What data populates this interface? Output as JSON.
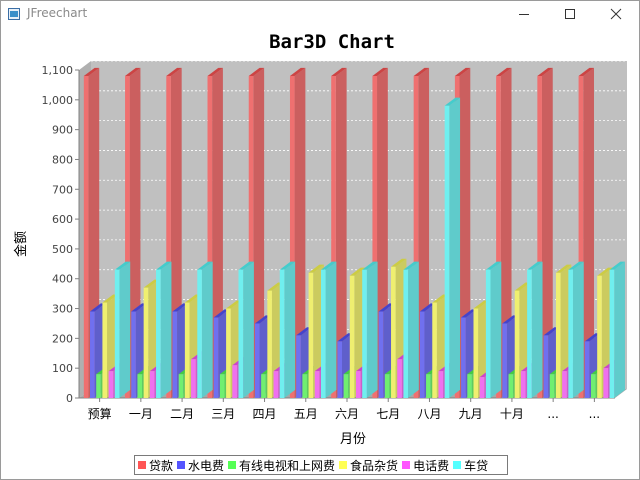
{
  "window": {
    "title": "JFreechart",
    "icon": "java-app-icon",
    "controls": [
      "minimize-icon",
      "maximize-icon",
      "close-icon"
    ]
  },
  "chart_data": {
    "type": "bar",
    "style": "3d-clustered",
    "title": "Bar3D Chart",
    "xlabel": "月份",
    "ylabel": "金额",
    "categories": [
      "预算",
      "一月",
      "二月",
      "三月",
      "四月",
      "五月",
      "六月",
      "七月",
      "八月",
      "九月",
      "十月",
      "...",
      "..."
    ],
    "ylim": [
      0,
      1100
    ],
    "yticks": [
      0,
      100,
      200,
      300,
      400,
      500,
      600,
      700,
      800,
      900,
      1000,
      1100
    ],
    "ytick_labels": [
      "0",
      "100",
      "200",
      "300",
      "400",
      "500",
      "600",
      "700",
      "800",
      "900",
      "1,000",
      "1,100"
    ],
    "grid": true,
    "background": "#c0c0c0",
    "legend_position": "bottom",
    "series": [
      {
        "name": "贷款",
        "color": "#ff5555",
        "values": [
          1080,
          1080,
          1080,
          1080,
          1080,
          1080,
          1080,
          1080,
          1080,
          1080,
          1080,
          1080,
          1080
        ]
      },
      {
        "name": "水电费",
        "color": "#5555ff",
        "values": [
          290,
          290,
          290,
          270,
          250,
          210,
          190,
          290,
          290,
          270,
          250,
          210,
          190
        ]
      },
      {
        "name": "有线电视和上网费",
        "color": "#55ff55",
        "values": [
          80,
          80,
          80,
          80,
          80,
          80,
          80,
          80,
          80,
          80,
          80,
          80,
          80
        ]
      },
      {
        "name": "食品杂货",
        "color": "#ffff55",
        "values": [
          320,
          370,
          320,
          300,
          360,
          420,
          410,
          440,
          320,
          300,
          360,
          420,
          410
        ]
      },
      {
        "name": "电话费",
        "color": "#ff55ff",
        "values": [
          90,
          90,
          130,
          110,
          90,
          90,
          90,
          130,
          90,
          70,
          90,
          90,
          100
        ]
      },
      {
        "name": "车贷",
        "color": "#55ffff",
        "values": [
          430,
          430,
          430,
          430,
          430,
          430,
          430,
          430,
          980,
          430,
          430,
          430,
          430
        ]
      }
    ]
  }
}
